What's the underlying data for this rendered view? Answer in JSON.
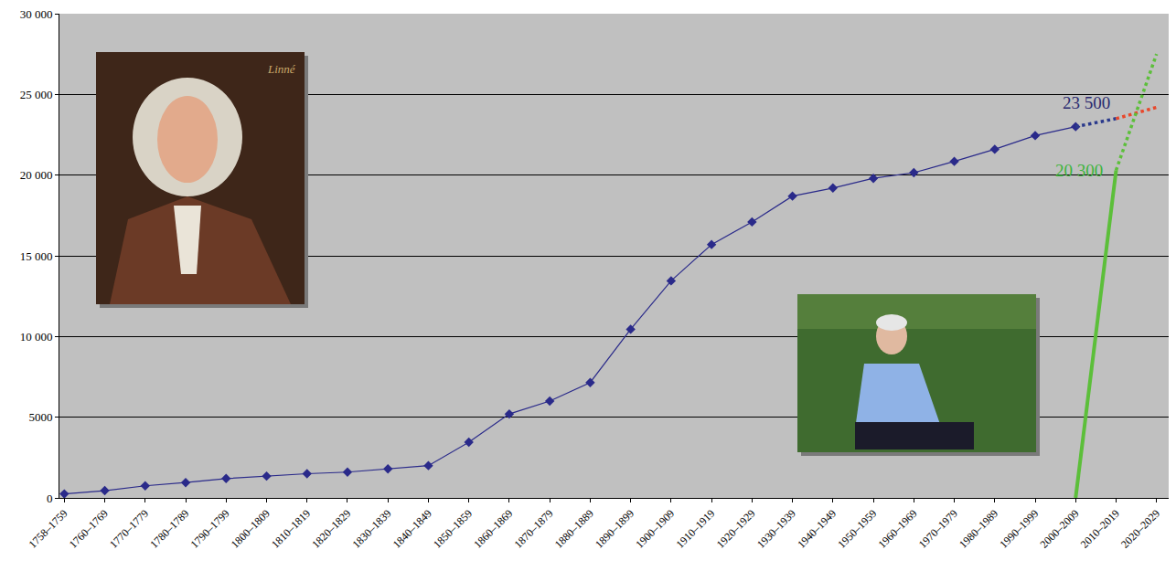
{
  "chart_data": {
    "type": "line",
    "categories": [
      "1758–1759",
      "1760–1769",
      "1770–1779",
      "1780–1789",
      "1790–1799",
      "1800–1809",
      "1810–1819",
      "1820–1829",
      "1830–1839",
      "1840–1849",
      "1850–1859",
      "1860–1869",
      "1870–1879",
      "1880–1889",
      "1890–1899",
      "1900–1909",
      "1910–1919",
      "1920–1929",
      "1930–1939",
      "1940–1949",
      "1950–1959",
      "1960–1969",
      "1970–1979",
      "1980–1989",
      "1990–1999",
      "2000–2009",
      "2010–2019",
      "2020–2029"
    ],
    "series": [
      {
        "color": "#2a2a8a",
        "marker": "diamond",
        "line_style": "solid",
        "values": [
          250,
          450,
          750,
          950,
          1200,
          1350,
          1500,
          1600,
          1800,
          2000,
          3450,
          5200,
          6000,
          7150,
          10450,
          13450,
          15700,
          17100,
          18700,
          19200,
          19800,
          20150,
          20850,
          21600,
          22450,
          23000,
          null,
          null
        ]
      },
      {
        "color": "#2b3a8c",
        "marker": "none",
        "line_style": "dotted",
        "values": [
          null,
          null,
          null,
          null,
          null,
          null,
          null,
          null,
          null,
          null,
          null,
          null,
          null,
          null,
          null,
          null,
          null,
          null,
          null,
          null,
          null,
          null,
          null,
          null,
          null,
          23000,
          23500,
          null
        ]
      },
      {
        "color": "#e8472b",
        "marker": "none",
        "line_style": "dotted",
        "values": [
          null,
          null,
          null,
          null,
          null,
          null,
          null,
          null,
          null,
          null,
          null,
          null,
          null,
          null,
          null,
          null,
          null,
          null,
          null,
          null,
          null,
          null,
          null,
          null,
          null,
          null,
          23500,
          24200
        ]
      },
      {
        "color": "#5cbf3a",
        "marker": "none",
        "line_style": "solid",
        "values": [
          null,
          null,
          null,
          null,
          null,
          null,
          null,
          null,
          null,
          null,
          null,
          null,
          null,
          null,
          null,
          null,
          null,
          null,
          null,
          null,
          null,
          null,
          null,
          null,
          null,
          0,
          20300,
          null
        ]
      },
      {
        "color": "#5cbf3a",
        "marker": "none",
        "line_style": "dotted",
        "values": [
          null,
          null,
          null,
          null,
          null,
          null,
          null,
          null,
          null,
          null,
          null,
          null,
          null,
          null,
          null,
          null,
          null,
          null,
          null,
          null,
          null,
          null,
          null,
          null,
          null,
          null,
          20300,
          27500
        ]
      }
    ],
    "ylim": [
      0,
      30000
    ],
    "yticks": [
      0,
      5000,
      {
        "value": 10000,
        "label": "10 000"
      },
      {
        "value": 15000,
        "label": "15 000"
      },
      {
        "value": 20000,
        "label": "20 000"
      },
      {
        "value": 25000,
        "label": "25 000"
      },
      {
        "value": 30000,
        "label": "30 000"
      }
    ],
    "grid": true,
    "annotations": [
      {
        "text": "23 500",
        "x": "2010–2019",
        "y": 23500,
        "color": "#2b2b70"
      },
      {
        "text": "20 300",
        "x": "2010–2019",
        "y": 20300,
        "color": "#3cb43c"
      }
    ],
    "portrait_signature": "Linné"
  }
}
